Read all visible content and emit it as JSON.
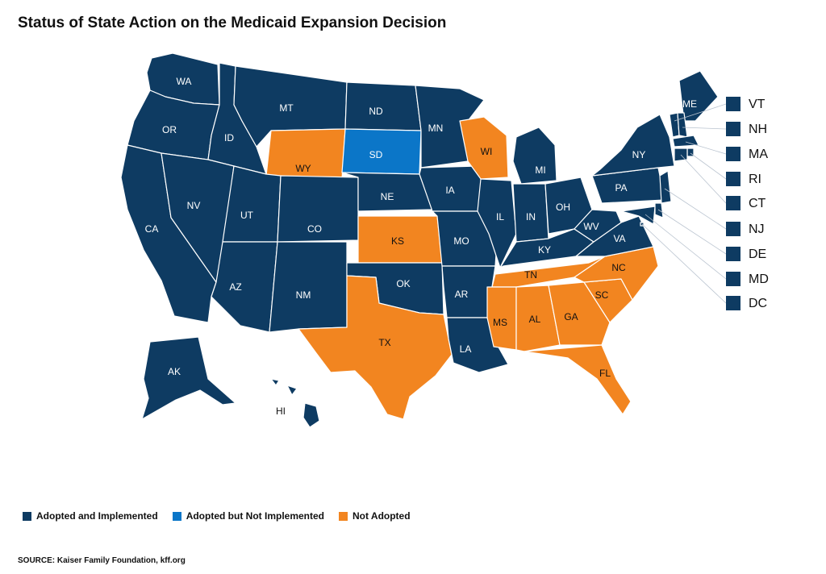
{
  "title": "Status of State Action on the Medicaid Expansion Decision",
  "colors": {
    "adopted_implemented": "#0e3b62",
    "adopted_not_implemented": "#0b76c8",
    "not_adopted": "#f28520",
    "border": "#ffffff"
  },
  "legend": [
    {
      "label": "Adopted and Implemented",
      "status": "adopted_implemented"
    },
    {
      "label": "Adopted but Not Implemented",
      "status": "adopted_not_implemented"
    },
    {
      "label": "Not Adopted",
      "status": "not_adopted"
    }
  ],
  "states": [
    {
      "abbr": "WA",
      "status": "adopted_implemented"
    },
    {
      "abbr": "OR",
      "status": "adopted_implemented"
    },
    {
      "abbr": "CA",
      "status": "adopted_implemented"
    },
    {
      "abbr": "ID",
      "status": "adopted_implemented"
    },
    {
      "abbr": "NV",
      "status": "adopted_implemented"
    },
    {
      "abbr": "MT",
      "status": "adopted_implemented"
    },
    {
      "abbr": "WY",
      "status": "not_adopted"
    },
    {
      "abbr": "UT",
      "status": "adopted_implemented"
    },
    {
      "abbr": "AZ",
      "status": "adopted_implemented"
    },
    {
      "abbr": "CO",
      "status": "adopted_implemented"
    },
    {
      "abbr": "NM",
      "status": "adopted_implemented"
    },
    {
      "abbr": "ND",
      "status": "adopted_implemented"
    },
    {
      "abbr": "SD",
      "status": "adopted_not_implemented"
    },
    {
      "abbr": "NE",
      "status": "adopted_implemented"
    },
    {
      "abbr": "KS",
      "status": "not_adopted"
    },
    {
      "abbr": "OK",
      "status": "adopted_implemented"
    },
    {
      "abbr": "TX",
      "status": "not_adopted"
    },
    {
      "abbr": "MN",
      "status": "adopted_implemented"
    },
    {
      "abbr": "IA",
      "status": "adopted_implemented"
    },
    {
      "abbr": "MO",
      "status": "adopted_implemented"
    },
    {
      "abbr": "AR",
      "status": "adopted_implemented"
    },
    {
      "abbr": "LA",
      "status": "adopted_implemented"
    },
    {
      "abbr": "WI",
      "status": "not_adopted"
    },
    {
      "abbr": "IL",
      "status": "adopted_implemented"
    },
    {
      "abbr": "MI",
      "status": "adopted_implemented"
    },
    {
      "abbr": "IN",
      "status": "adopted_implemented"
    },
    {
      "abbr": "OH",
      "status": "adopted_implemented"
    },
    {
      "abbr": "KY",
      "status": "adopted_implemented"
    },
    {
      "abbr": "TN",
      "status": "not_adopted"
    },
    {
      "abbr": "MS",
      "status": "not_adopted"
    },
    {
      "abbr": "AL",
      "status": "not_adopted"
    },
    {
      "abbr": "GA",
      "status": "not_adopted"
    },
    {
      "abbr": "FL",
      "status": "not_adopted"
    },
    {
      "abbr": "SC",
      "status": "not_adopted"
    },
    {
      "abbr": "NC",
      "status": "not_adopted"
    },
    {
      "abbr": "VA",
      "status": "adopted_implemented"
    },
    {
      "abbr": "WV",
      "status": "adopted_implemented"
    },
    {
      "abbr": "PA",
      "status": "adopted_implemented"
    },
    {
      "abbr": "NY",
      "status": "adopted_implemented"
    },
    {
      "abbr": "ME",
      "status": "adopted_implemented"
    },
    {
      "abbr": "AK",
      "status": "adopted_implemented"
    },
    {
      "abbr": "HI",
      "status": "adopted_implemented"
    }
  ],
  "small_states": [
    {
      "abbr": "VT",
      "status": "adopted_implemented"
    },
    {
      "abbr": "NH",
      "status": "adopted_implemented"
    },
    {
      "abbr": "MA",
      "status": "adopted_implemented"
    },
    {
      "abbr": "RI",
      "status": "adopted_implemented"
    },
    {
      "abbr": "CT",
      "status": "adopted_implemented"
    },
    {
      "abbr": "NJ",
      "status": "adopted_implemented"
    },
    {
      "abbr": "DE",
      "status": "adopted_implemented"
    },
    {
      "abbr": "MD",
      "status": "adopted_implemented"
    },
    {
      "abbr": "DC",
      "status": "adopted_implemented"
    }
  ],
  "source": "SOURCE: Kaiser Family Foundation, kff.org"
}
